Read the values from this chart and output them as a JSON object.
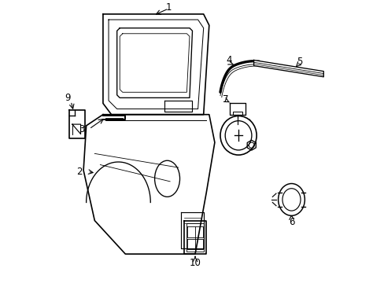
{
  "background_color": "#ffffff",
  "line_color": "#000000",
  "line_width": 1.2,
  "label_fontsize": 8.5
}
